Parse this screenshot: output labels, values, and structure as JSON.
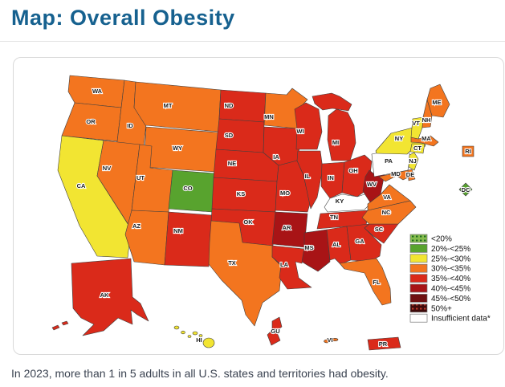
{
  "page": {
    "title": "Map: Overall Obesity",
    "caption": "In 2023, more than 1 in 5 adults in all U.S. states and territories had obesity.",
    "colors": {
      "title": "#16618f",
      "caption": "#3b4351"
    }
  },
  "map": {
    "legend": {
      "position": "right",
      "insufficient_note_suffix": "*"
    },
    "categories": [
      {
        "id": "lt20",
        "label": "<20%",
        "color": "#86bd4e",
        "pattern_dot": "#1f6b1f"
      },
      {
        "id": "c20_25",
        "label": "20%-<25%",
        "color": "#58a32e"
      },
      {
        "id": "c25_30",
        "label": "25%-<30%",
        "color": "#f2e532"
      },
      {
        "id": "c30_35",
        "label": "30%-<35%",
        "color": "#f3751f"
      },
      {
        "id": "c35_40",
        "label": "35%-<40%",
        "color": "#da2a1a"
      },
      {
        "id": "c40_45",
        "label": "40%-<45%",
        "color": "#a81416"
      },
      {
        "id": "c45_50",
        "label": "45%-<50%",
        "color": "#6f1011"
      },
      {
        "id": "c50plus",
        "label": "50%+",
        "color": "#400a0a",
        "pattern_dot": "#c0392b"
      },
      {
        "id": "insufficient",
        "label": "Insufficient data*",
        "color": "#ffffff"
      }
    ],
    "states": [
      {
        "id": "WA",
        "label": "WA",
        "category": "c30_35"
      },
      {
        "id": "OR",
        "label": "OR",
        "category": "c30_35"
      },
      {
        "id": "CA",
        "label": "CA",
        "category": "c25_30"
      },
      {
        "id": "ID",
        "label": "ID",
        "category": "c30_35"
      },
      {
        "id": "NV",
        "label": "NV",
        "category": "c30_35"
      },
      {
        "id": "MT",
        "label": "MT",
        "category": "c30_35"
      },
      {
        "id": "WY",
        "label": "WY",
        "category": "c30_35"
      },
      {
        "id": "UT",
        "label": "UT",
        "category": "c30_35"
      },
      {
        "id": "CO",
        "label": "CO",
        "category": "c20_25"
      },
      {
        "id": "AZ",
        "label": "AZ",
        "category": "c30_35"
      },
      {
        "id": "NM",
        "label": "NM",
        "category": "c35_40"
      },
      {
        "id": "ND",
        "label": "ND",
        "category": "c35_40"
      },
      {
        "id": "SD",
        "label": "SD",
        "category": "c35_40"
      },
      {
        "id": "NE",
        "label": "NE",
        "category": "c35_40"
      },
      {
        "id": "KS",
        "label": "KS",
        "category": "c35_40"
      },
      {
        "id": "OK",
        "label": "OK",
        "category": "c35_40"
      },
      {
        "id": "TX",
        "label": "TX",
        "category": "c30_35"
      },
      {
        "id": "MN",
        "label": "MN",
        "category": "c30_35"
      },
      {
        "id": "IA",
        "label": "IA",
        "category": "c35_40"
      },
      {
        "id": "MO",
        "label": "MO",
        "category": "c35_40"
      },
      {
        "id": "AR",
        "label": "AR",
        "category": "c40_45"
      },
      {
        "id": "LA",
        "label": "LA",
        "category": "c35_40"
      },
      {
        "id": "WI",
        "label": "WI",
        "category": "c35_40"
      },
      {
        "id": "IL",
        "label": "IL",
        "category": "c35_40"
      },
      {
        "id": "MI",
        "label": "MI",
        "category": "c35_40"
      },
      {
        "id": "IN",
        "label": "IN",
        "category": "c35_40"
      },
      {
        "id": "OH",
        "label": "OH",
        "category": "c35_40"
      },
      {
        "id": "KY",
        "label": "KY",
        "category": "insufficient"
      },
      {
        "id": "TN",
        "label": "TN",
        "category": "c35_40"
      },
      {
        "id": "MS",
        "label": "MS",
        "category": "c40_45"
      },
      {
        "id": "AL",
        "label": "AL",
        "category": "c35_40"
      },
      {
        "id": "GA",
        "label": "GA",
        "category": "c35_40"
      },
      {
        "id": "FL",
        "label": "FL",
        "category": "c30_35"
      },
      {
        "id": "SC",
        "label": "SC",
        "category": "c35_40"
      },
      {
        "id": "NC",
        "label": "NC",
        "category": "c30_35"
      },
      {
        "id": "VA",
        "label": "VA",
        "category": "c30_35"
      },
      {
        "id": "WV",
        "label": "WV",
        "category": "c40_45"
      },
      {
        "id": "PA",
        "label": "PA",
        "category": "insufficient"
      },
      {
        "id": "NY",
        "label": "NY",
        "category": "c25_30"
      },
      {
        "id": "NJ",
        "label": "NJ",
        "category": "c25_30"
      },
      {
        "id": "MD",
        "label": "MD",
        "category": "c30_35"
      },
      {
        "id": "DE",
        "label": "DE",
        "category": "c30_35"
      },
      {
        "id": "CT",
        "label": "CT",
        "category": "c25_30"
      },
      {
        "id": "RI",
        "label": "RI",
        "category": "c30_35"
      },
      {
        "id": "MA",
        "label": "MA",
        "category": "c30_35"
      },
      {
        "id": "VT",
        "label": "VT",
        "category": "c25_30"
      },
      {
        "id": "NH",
        "label": "NH",
        "category": "c30_35"
      },
      {
        "id": "ME",
        "label": "ME",
        "category": "c30_35"
      },
      {
        "id": "DC",
        "label": "DC",
        "category": "c20_25"
      },
      {
        "id": "AK",
        "label": "AK",
        "category": "c35_40"
      },
      {
        "id": "HI",
        "label": "HI",
        "category": "c25_30"
      },
      {
        "id": "GU",
        "label": "GU",
        "category": "c35_40"
      },
      {
        "id": "VI",
        "label": "VI",
        "category": "c30_35"
      },
      {
        "id": "PR",
        "label": "PR",
        "category": "c35_40"
      }
    ]
  }
}
